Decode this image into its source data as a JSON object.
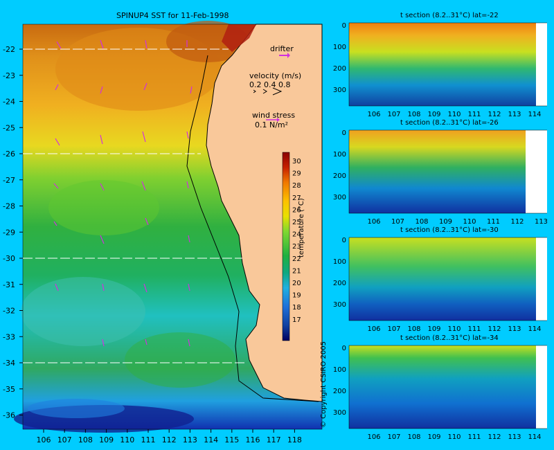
{
  "main_map": {
    "title": "SPINUP4 SST for 11-Feb-1998",
    "lon_ticks": [
      "106",
      "107",
      "108",
      "109",
      "110",
      "111",
      "112",
      "113",
      "114",
      "115",
      "116",
      "117",
      "118"
    ],
    "lat_ticks": [
      "-22",
      "-23",
      "-24",
      "-25",
      "-26",
      "-27",
      "-28",
      "-29",
      "-30",
      "-31",
      "-32",
      "-33",
      "-34",
      "-35",
      "-36"
    ],
    "section_lats": [
      -22,
      -26,
      -30,
      -34
    ],
    "legend": {
      "drifter_label": "drifter",
      "velocity_label": "velocity (m/s)",
      "velocity_scale": [
        "0.2",
        "0.4",
        "0.8"
      ],
      "wind_label": "wind stress",
      "wind_scale": "0.1 N/m²"
    },
    "copyright": "© Copyright CSIRO 2005"
  },
  "colorbar": {
    "label": "temperature (°C)",
    "ticks": [
      "30",
      "29",
      "28",
      "27",
      "26",
      "25",
      "24",
      "23",
      "22",
      "21",
      "20",
      "19",
      "18",
      "17"
    ],
    "colors": [
      "#8b0000",
      "#c62000",
      "#e04a00",
      "#f07800",
      "#f9a200",
      "#fcc200",
      "#e8e000",
      "#b0e000",
      "#60d030",
      "#20b040",
      "#10a070",
      "#10b0a0",
      "#20b0e0",
      "#2080e0",
      "#1050c0",
      "#002080",
      "#000060"
    ]
  },
  "sections": [
    {
      "title": "t section (8.2..31°C) lat=-22",
      "x_ticks": [
        "106",
        "107",
        "108",
        "109",
        "110",
        "111",
        "112",
        "113",
        "114"
      ],
      "depth_ticks": [
        "0",
        "100",
        "200",
        "300"
      ]
    },
    {
      "title": "t section (8.2..31°C) lat=-26",
      "x_ticks": [
        "106",
        "107",
        "108",
        "109",
        "110",
        "111",
        "112",
        "113"
      ],
      "depth_ticks": [
        "0",
        "100",
        "200",
        "300"
      ]
    },
    {
      "title": "t section (8.2..31°C) lat=-30",
      "x_ticks": [
        "106",
        "107",
        "108",
        "109",
        "110",
        "111",
        "112",
        "113",
        "114"
      ],
      "depth_ticks": [
        "0",
        "100",
        "200",
        "300"
      ]
    },
    {
      "title": "t section (8.2..31°C) lat=-34",
      "x_ticks": [
        "106",
        "107",
        "108",
        "109",
        "110",
        "111",
        "112",
        "113",
        "114"
      ],
      "depth_ticks": [
        "0",
        "100",
        "200",
        "300"
      ]
    }
  ]
}
